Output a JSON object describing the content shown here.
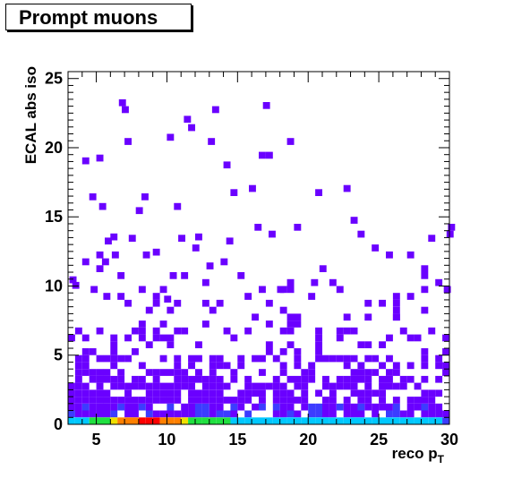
{
  "title": "Prompt muons",
  "chart_data": {
    "type": "heatmap",
    "title": "Prompt muons",
    "xlabel_main": "reco p",
    "xlabel_sub": "T",
    "ylabel": "ECAL abs iso",
    "xlim": [
      3,
      30
    ],
    "ylim": [
      0,
      25.5
    ],
    "x_ticks": [
      "5",
      "10",
      "15",
      "20",
      "25",
      "30"
    ],
    "y_ticks": [
      "0",
      "5",
      "10",
      "15",
      "20",
      "25"
    ],
    "x_tick_values": [
      5,
      10,
      15,
      20,
      25,
      30
    ],
    "y_tick_values": [
      0,
      5,
      10,
      15,
      20,
      25
    ],
    "grid": false,
    "colors": {
      "low": "#6a00ff",
      "mid_low": "#3c3cff",
      "cyan": "#00c8ff",
      "green": "#20e040",
      "yellow": "#f0e000",
      "orange": "#ff8000",
      "red": "#ff0000"
    },
    "zero_bin_row": {
      "description_free": true,
      "x_start": 3,
      "bin_width": 0.5,
      "intensity": [
        4,
        4,
        4,
        5,
        6,
        6,
        7,
        8,
        8,
        8,
        9,
        9,
        9,
        8,
        8,
        8,
        7,
        6,
        6,
        6,
        5,
        5,
        5,
        4,
        4,
        4,
        4,
        4,
        4,
        4,
        4,
        4,
        4,
        4,
        4,
        4,
        4,
        4,
        3,
        3,
        3,
        3,
        3,
        3,
        3,
        3,
        3,
        3,
        3,
        3,
        3,
        3,
        3,
        2
      ]
    },
    "scatter_cells": [
      [
        3.1,
        10.2
      ],
      [
        3.3,
        9.8
      ],
      [
        4.0,
        18.8
      ],
      [
        4.5,
        16.2
      ],
      [
        4.6,
        9.5
      ],
      [
        5.0,
        19.0
      ],
      [
        5.2,
        15.5
      ],
      [
        5.0,
        12.0
      ],
      [
        5.4,
        11.5
      ],
      [
        5.6,
        13.0
      ],
      [
        6.0,
        13.3
      ],
      [
        6.1,
        12.0
      ],
      [
        6.5,
        10.5
      ],
      [
        6.6,
        23.0
      ],
      [
        6.8,
        22.5
      ],
      [
        7.0,
        20.2
      ],
      [
        7.3,
        13.2
      ],
      [
        7.8,
        15.2
      ],
      [
        8.2,
        16.2
      ],
      [
        8.3,
        12.0
      ],
      [
        9.0,
        12.2
      ],
      [
        9.8,
        8.8
      ],
      [
        10.0,
        20.5
      ],
      [
        10.2,
        10.5
      ],
      [
        10.5,
        15.5
      ],
      [
        10.8,
        13.2
      ],
      [
        11.2,
        21.8
      ],
      [
        11.5,
        21.2
      ],
      [
        11.8,
        12.5
      ],
      [
        12.0,
        13.3
      ],
      [
        12.5,
        10.0
      ],
      [
        12.8,
        11.2
      ],
      [
        12.9,
        20.2
      ],
      [
        13.2,
        22.5
      ],
      [
        13.8,
        11.5
      ],
      [
        14.0,
        18.5
      ],
      [
        14.2,
        13.0
      ],
      [
        14.5,
        16.5
      ],
      [
        15.0,
        10.5
      ],
      [
        15.8,
        16.8
      ],
      [
        16.2,
        14.0
      ],
      [
        16.5,
        19.2
      ],
      [
        16.8,
        22.8
      ],
      [
        17.0,
        19.2
      ],
      [
        17.2,
        13.5
      ],
      [
        17.8,
        9.5
      ],
      [
        18.5,
        20.2
      ],
      [
        19.0,
        14.0
      ],
      [
        20.2,
        10.0
      ],
      [
        20.5,
        16.5
      ],
      [
        20.8,
        11.0
      ],
      [
        22.0,
        9.5
      ],
      [
        22.5,
        16.8
      ],
      [
        23.0,
        14.5
      ],
      [
        23.5,
        13.5
      ],
      [
        24.5,
        12.5
      ],
      [
        25.5,
        12.0
      ],
      [
        26.0,
        7.5
      ],
      [
        27.0,
        12.0
      ],
      [
        28.0,
        11.0
      ],
      [
        28.5,
        13.2
      ],
      [
        29.0,
        10.0
      ],
      [
        29.6,
        9.5
      ],
      [
        29.8,
        13.5
      ],
      [
        29.9,
        14.0
      ]
    ]
  }
}
